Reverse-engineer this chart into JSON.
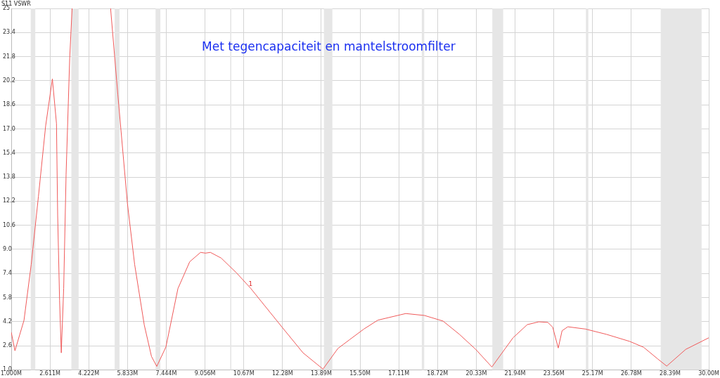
{
  "chart_data": {
    "type": "line",
    "title": "Met tegencapaciteit en mantelstroomfilter",
    "ylabel": "S11 VSWR",
    "xlim": [
      1,
      30
    ],
    "ylim": [
      1,
      25
    ],
    "xticks": [
      {
        "value": 1,
        "label": "1.000M"
      },
      {
        "value": 2.611,
        "label": "2.611M"
      },
      {
        "value": 4.222,
        "label": "4.222M"
      },
      {
        "value": 5.833,
        "label": "5.833M"
      },
      {
        "value": 7.444,
        "label": "7.444M"
      },
      {
        "value": 9.056,
        "label": "9.056M"
      },
      {
        "value": 10.667,
        "label": "10.67M"
      },
      {
        "value": 12.278,
        "label": "12.28M"
      },
      {
        "value": 13.889,
        "label": "13.89M"
      },
      {
        "value": 15.5,
        "label": "15.50M"
      },
      {
        "value": 17.111,
        "label": "17.11M"
      },
      {
        "value": 18.722,
        "label": "18.72M"
      },
      {
        "value": 20.333,
        "label": "20.33M"
      },
      {
        "value": 21.944,
        "label": "21.94M"
      },
      {
        "value": 23.556,
        "label": "23.56M"
      },
      {
        "value": 25.167,
        "label": "25.17M"
      },
      {
        "value": 26.778,
        "label": "26.78M"
      },
      {
        "value": 28.389,
        "label": "28.39M"
      },
      {
        "value": 30,
        "label": "30.00M"
      }
    ],
    "yticks": [
      {
        "value": 1,
        "label": "1.0"
      },
      2.6,
      4.2,
      5.8,
      7.4,
      {
        "value": 9,
        "label": "9.0"
      },
      10.6,
      12.2,
      13.8,
      15.4,
      {
        "value": 17,
        "label": "17.0"
      },
      18.6,
      20.2,
      21.8,
      23.4,
      25
    ],
    "grid": true,
    "legend": false,
    "marker": "none",
    "line_style": "solid",
    "bands": [
      {
        "axis": "x",
        "from": 1.81,
        "to": 2.0,
        "color": "#e6e6e6"
      },
      {
        "axis": "x",
        "from": 3.5,
        "to": 3.8,
        "color": "#e6e6e6"
      },
      {
        "axis": "x",
        "from": 5.3,
        "to": 5.5,
        "color": "#e6e6e6"
      },
      {
        "axis": "x",
        "from": 7.0,
        "to": 7.2,
        "color": "#e6e6e6"
      },
      {
        "axis": "x",
        "from": 10.1,
        "to": 10.15,
        "color": "#e6e6e6"
      },
      {
        "axis": "x",
        "from": 14.0,
        "to": 14.35,
        "color": "#e6e6e6"
      },
      {
        "axis": "x",
        "from": 18.068,
        "to": 18.168,
        "color": "#e6e6e6"
      },
      {
        "axis": "x",
        "from": 21.0,
        "to": 21.45,
        "color": "#e6e6e6"
      },
      {
        "axis": "x",
        "from": 24.89,
        "to": 24.99,
        "color": "#e6e6e6"
      },
      {
        "axis": "x",
        "from": 28.0,
        "to": 29.7,
        "color": "#e6e6e6"
      }
    ],
    "annotations": [
      {
        "text": "1",
        "x": 10.95,
        "y": 6.42
      }
    ],
    "series": [
      {
        "color": "#f05a5a",
        "x": [
          1,
          1.154,
          1.53,
          1.83,
          2.13,
          2.43,
          2.71,
          2.88,
          2.93,
          3.01,
          3.08,
          3.18,
          3.28,
          3.43,
          3.53,
          4.3,
          5.13,
          5.43,
          5.83,
          6.13,
          6.53,
          6.83,
          7.05,
          7.43,
          7.93,
          8.42,
          8.87,
          9.07,
          9.28,
          9.73,
          10.37,
          10.95,
          12.26,
          13.13,
          13.96,
          14.58,
          15.08,
          15.66,
          16.24,
          17.4,
          18.18,
          18.95,
          19.63,
          20.31,
          20.98,
          21.86,
          22.45,
          22.93,
          23.31,
          23.51,
          23.74,
          23.9,
          24.14,
          24.87,
          25.74,
          26.71,
          27.29,
          27.88,
          28.25,
          29.04,
          30
        ],
        "values": [
          3.5,
          2.27,
          4.29,
          8.0,
          12.52,
          17.2,
          20.32,
          17.36,
          11.24,
          5.6,
          2.13,
          6.4,
          13.98,
          21.7,
          25,
          null,
          25,
          19.3,
          12.04,
          8.0,
          3.98,
          1.89,
          1.23,
          2.52,
          6.4,
          8.18,
          8.8,
          8.75,
          8.8,
          8.42,
          7.43,
          6.42,
          3.83,
          2.13,
          1.05,
          2.42,
          3.02,
          3.71,
          4.3,
          4.74,
          4.61,
          4.24,
          3.36,
          2.36,
          1.19,
          3.13,
          4.0,
          4.19,
          4.15,
          3.83,
          2.45,
          3.6,
          3.86,
          3.71,
          3.36,
          2.89,
          2.5,
          1.72,
          1.25,
          2.36,
          3.13
        ]
      }
    ]
  }
}
